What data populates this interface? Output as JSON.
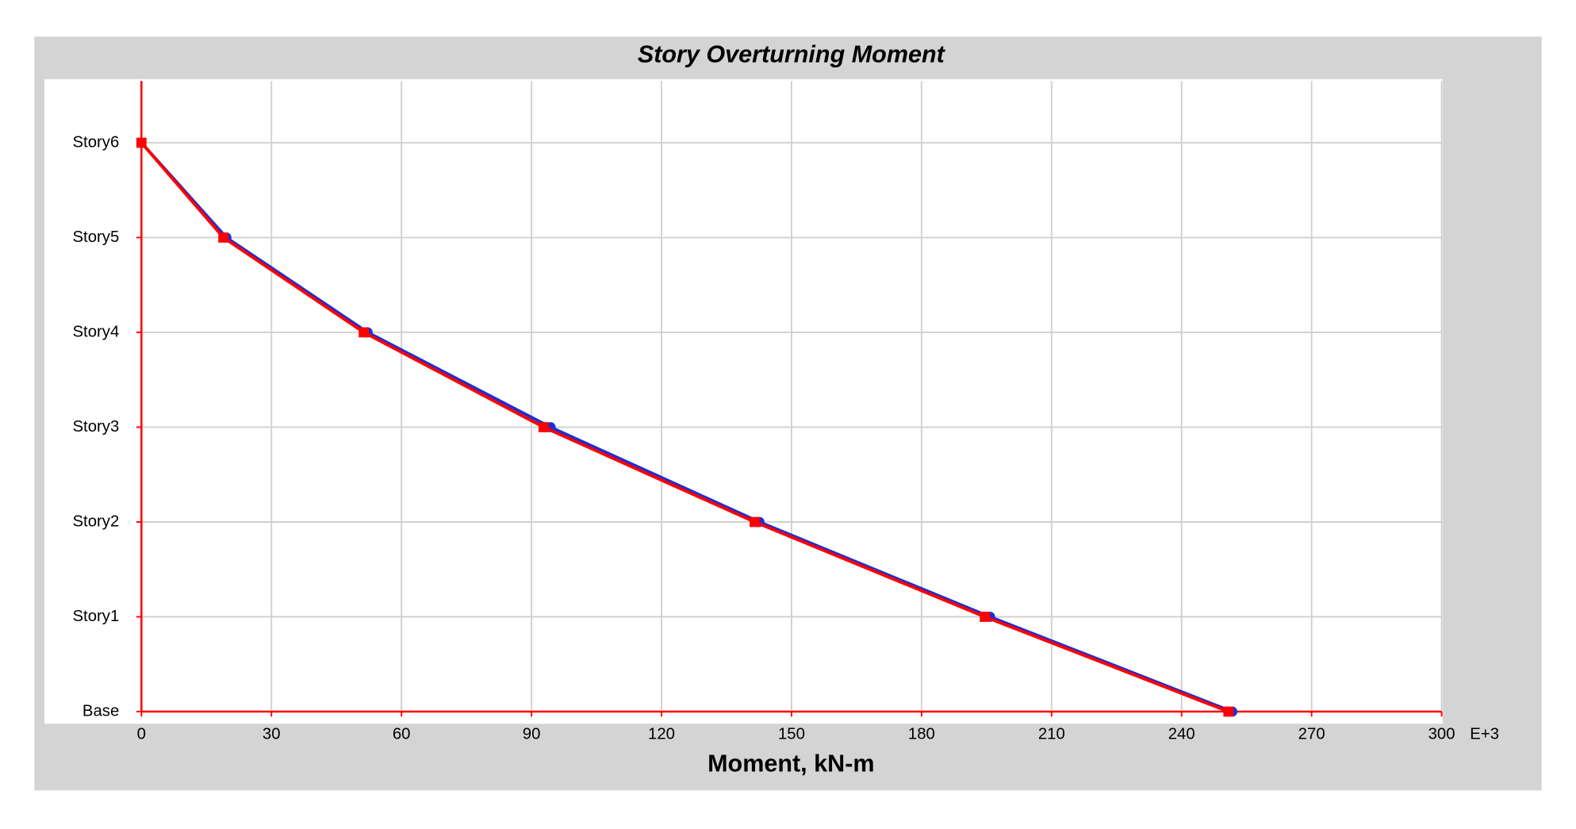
{
  "chart_data": {
    "type": "line",
    "title": "Story Overturning Moment",
    "x_label": "Moment, kN-m",
    "x_unit_label": "E+3",
    "categories": [
      "Base",
      "Story1",
      "Story2",
      "Story3",
      "Story4",
      "Story5",
      "Story6"
    ],
    "series": [
      {
        "color": "#1f2fd0",
        "values": [
          251.7,
          195.8,
          142.6,
          94.4,
          52.2,
          19.6,
          0
        ]
      },
      {
        "color": "#ff0000",
        "values": [
          250.8,
          194.6,
          141.5,
          92.8,
          51.3,
          18.9,
          0
        ]
      }
    ],
    "xlim": [
      0,
      300
    ],
    "xticks": [
      0,
      30,
      60,
      90,
      120,
      150,
      180,
      210,
      240,
      270,
      300
    ],
    "grid": true
  }
}
